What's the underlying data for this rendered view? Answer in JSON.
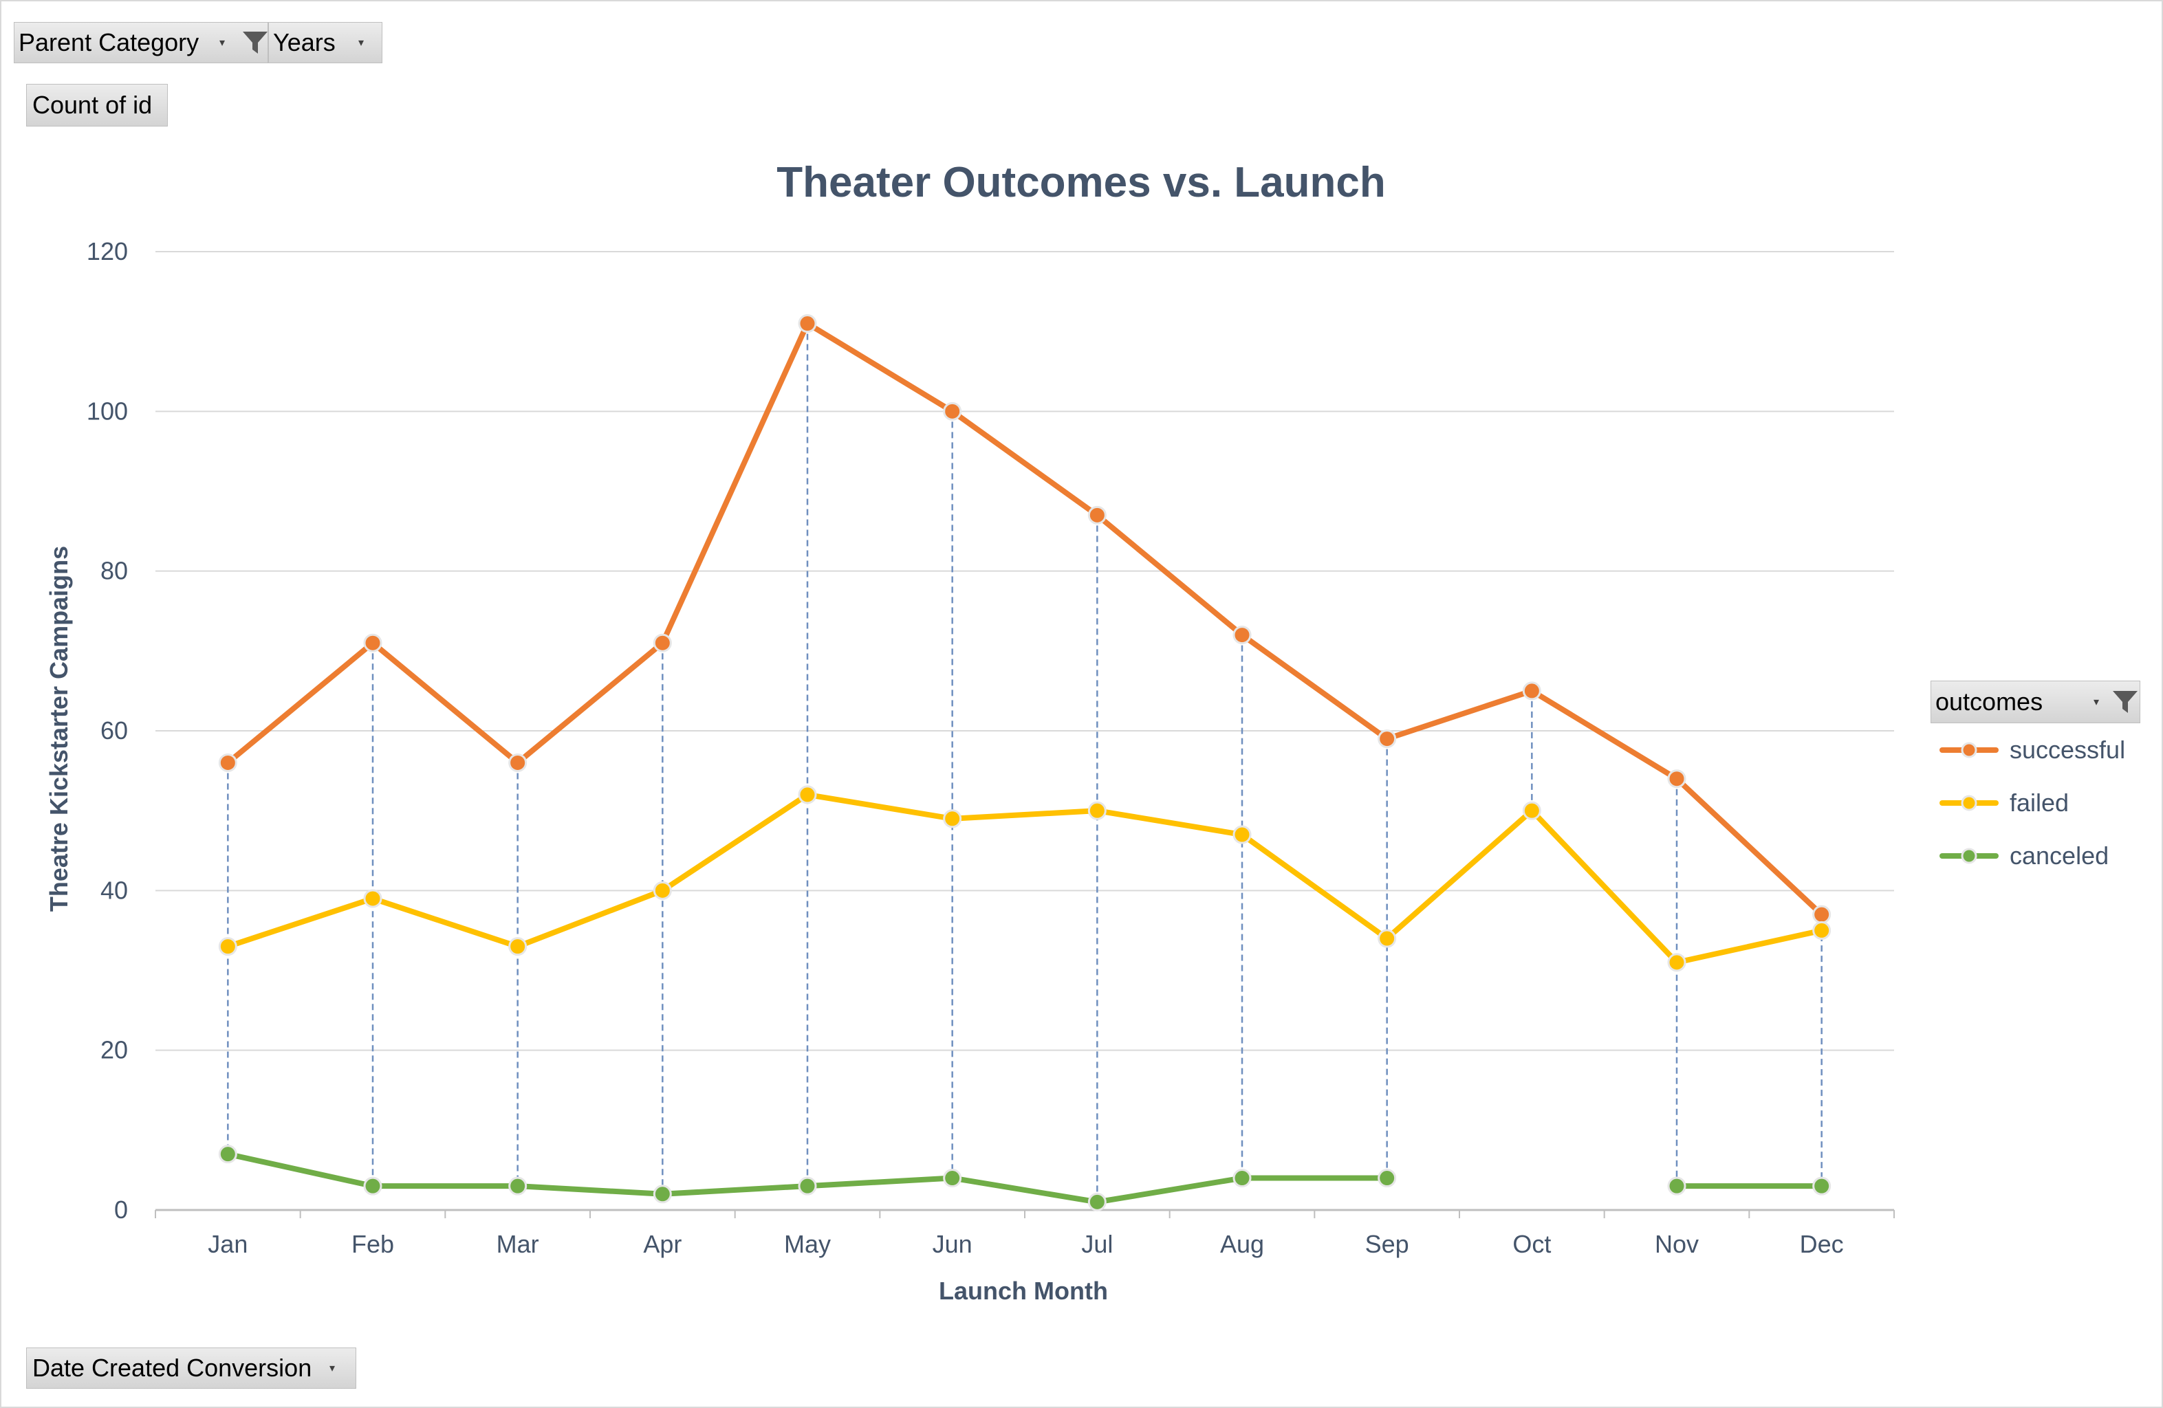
{
  "filters": {
    "parent_category": "Parent Category",
    "years": "Years",
    "count_of_id": "Count of id",
    "date_created_conversion": "Date Created Conversion",
    "outcomes": "outcomes"
  },
  "chart_data": {
    "type": "line",
    "title": "Theater Outcomes vs. Launch",
    "xlabel": "Launch Month",
    "ylabel": "Theatre Kickstarter Campaigns",
    "categories": [
      "Jan",
      "Feb",
      "Mar",
      "Apr",
      "May",
      "Jun",
      "Jul",
      "Aug",
      "Sep",
      "Oct",
      "Nov",
      "Dec"
    ],
    "ylim": [
      0,
      120
    ],
    "yticks": [
      0,
      20,
      40,
      60,
      80,
      100,
      120
    ],
    "grid": true,
    "drop_lines": true,
    "legend_position": "right",
    "series": [
      {
        "name": "successful",
        "color": "#ed7d31",
        "values": [
          56,
          71,
          56,
          71,
          111,
          100,
          87,
          72,
          59,
          65,
          54,
          37
        ]
      },
      {
        "name": "failed",
        "color": "#ffc000",
        "values": [
          33,
          39,
          33,
          40,
          52,
          49,
          50,
          47,
          34,
          50,
          31,
          35
        ]
      },
      {
        "name": "canceled",
        "color": "#70ad47",
        "values": [
          7,
          3,
          3,
          2,
          3,
          4,
          1,
          4,
          4,
          null,
          3,
          3
        ]
      }
    ]
  }
}
